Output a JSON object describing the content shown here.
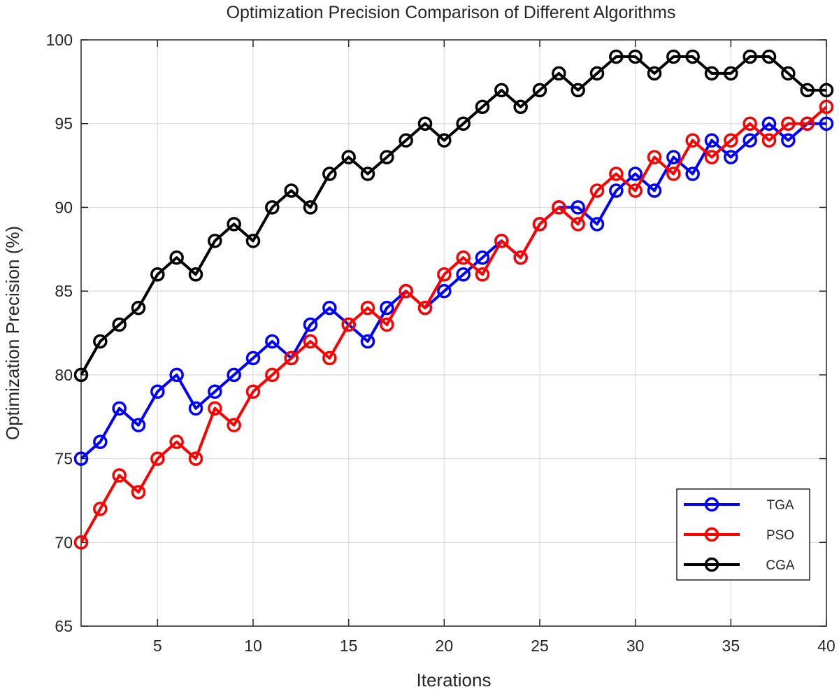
{
  "chart_data": {
    "type": "line",
    "title": "Optimization Precision Comparison of Different Algorithms",
    "xlabel": "Iterations",
    "ylabel": "Optimization Precision (%)",
    "xlim": [
      1,
      40
    ],
    "ylim": [
      65,
      100
    ],
    "xticks": [
      5,
      10,
      15,
      20,
      25,
      30,
      35,
      40
    ],
    "yticks": [
      65,
      70,
      75,
      80,
      85,
      90,
      95,
      100
    ],
    "grid": true,
    "legend_position": "bottom-right",
    "x": [
      1,
      2,
      3,
      4,
      5,
      6,
      7,
      8,
      9,
      10,
      11,
      12,
      13,
      14,
      15,
      16,
      17,
      18,
      19,
      20,
      21,
      22,
      23,
      24,
      25,
      26,
      27,
      28,
      29,
      30,
      31,
      32,
      33,
      34,
      35,
      36,
      37,
      38,
      39,
      40
    ],
    "series": [
      {
        "name": "TGA",
        "color": "#0000ff",
        "marker": "circle-open",
        "values": [
          75,
          76,
          78,
          77,
          79,
          80,
          78,
          79,
          80,
          81,
          82,
          81,
          83,
          84,
          83,
          82,
          84,
          85,
          84,
          85,
          86,
          87,
          88,
          87,
          89,
          90,
          90,
          89,
          91,
          92,
          91,
          93,
          92,
          94,
          93,
          94,
          95,
          94,
          95,
          95
        ]
      },
      {
        "name": "PSO",
        "color": "#ff0000",
        "marker": "circle-open",
        "values": [
          70,
          72,
          74,
          73,
          75,
          76,
          75,
          78,
          77,
          79,
          80,
          81,
          82,
          81,
          83,
          84,
          83,
          85,
          84,
          86,
          87,
          86,
          88,
          87,
          89,
          90,
          89,
          91,
          92,
          91,
          93,
          92,
          94,
          93,
          94,
          95,
          94,
          95,
          95,
          96
        ]
      },
      {
        "name": "CGA",
        "color": "#000000",
        "marker": "circle-open",
        "values": [
          80,
          82,
          83,
          84,
          86,
          87,
          86,
          88,
          89,
          88,
          90,
          91,
          90,
          92,
          93,
          92,
          93,
          94,
          95,
          94,
          95,
          96,
          97,
          96,
          97,
          98,
          97,
          98,
          99,
          99,
          98,
          99,
          99,
          98,
          98,
          99,
          99,
          98,
          97,
          97
        ]
      }
    ]
  }
}
